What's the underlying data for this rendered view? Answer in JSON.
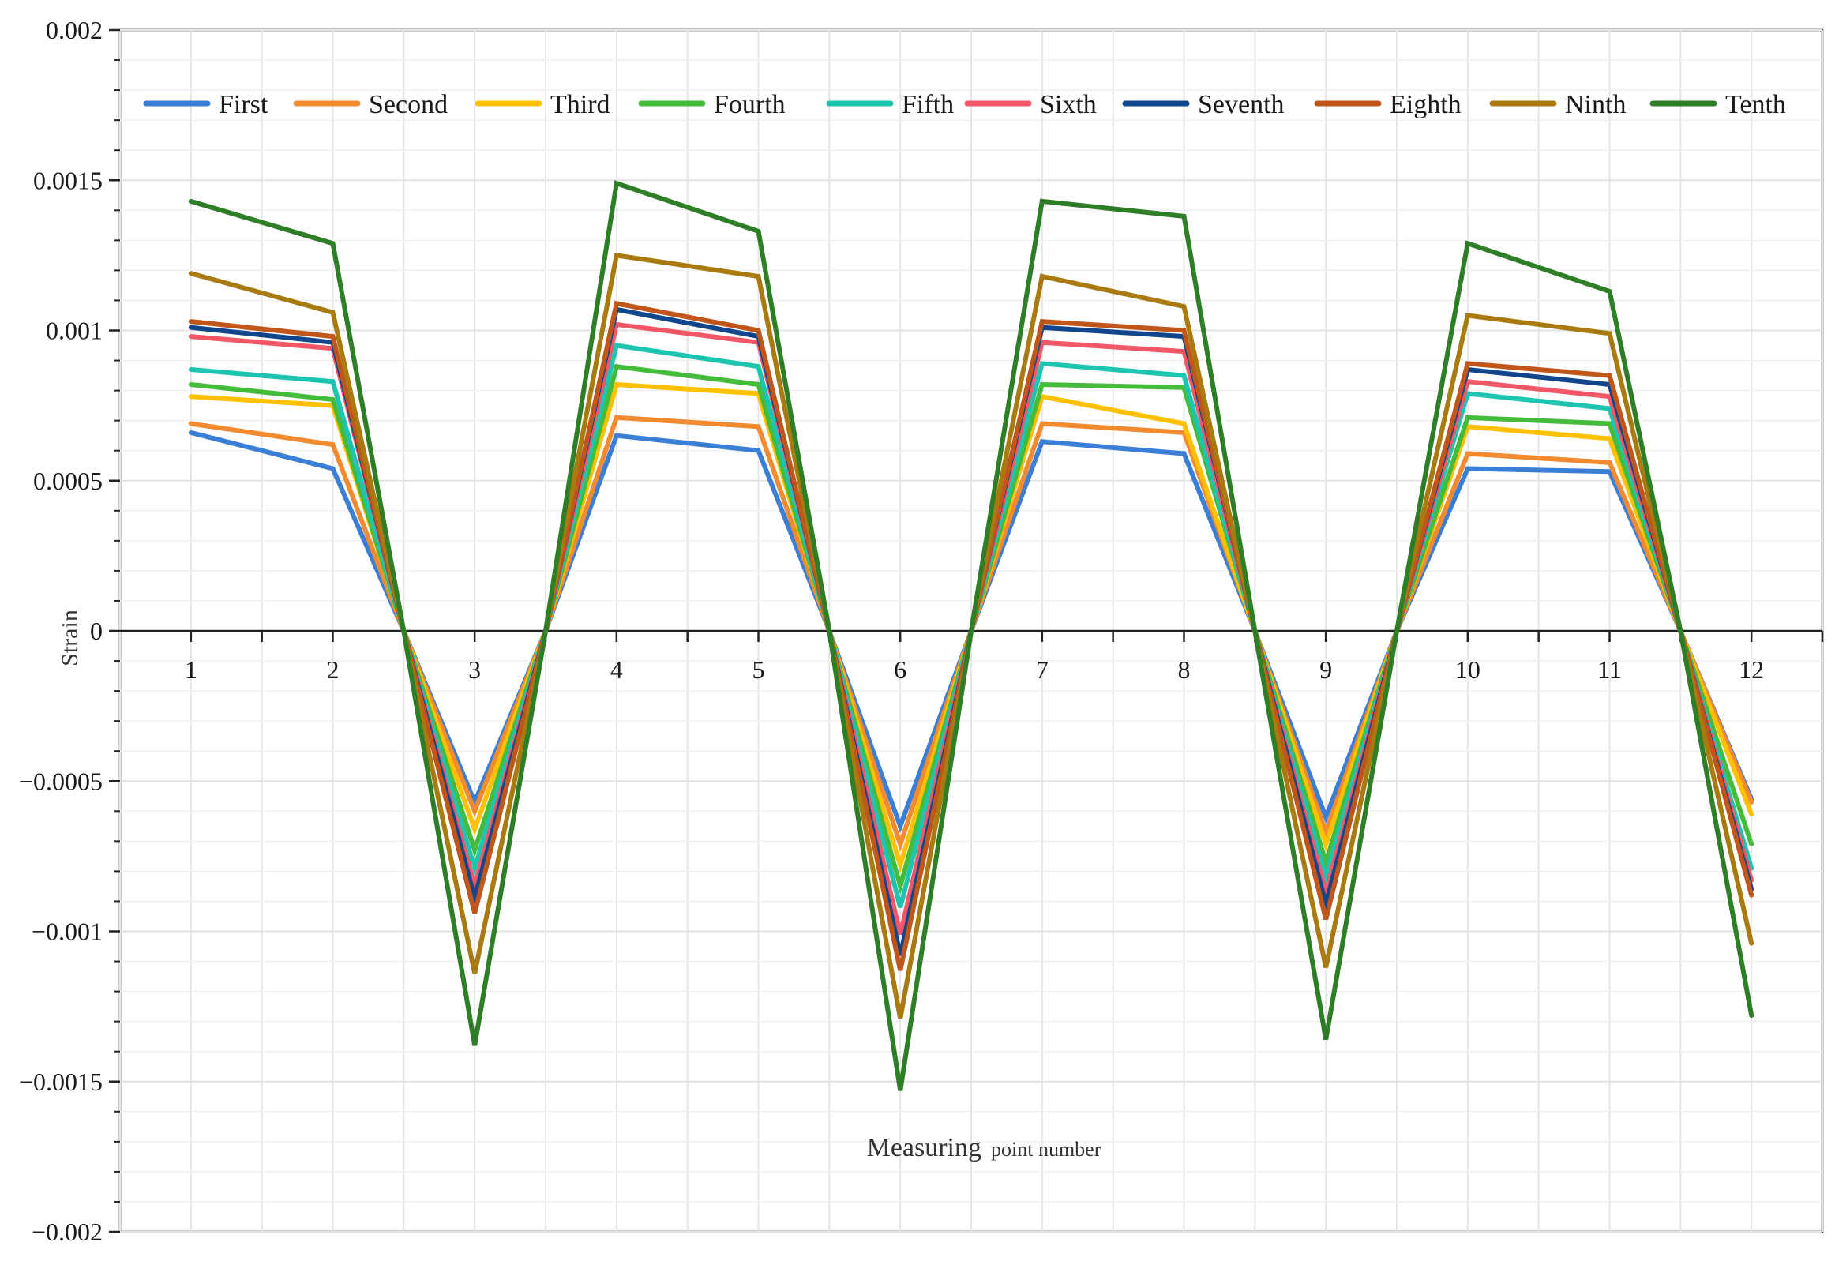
{
  "chart_data": {
    "type": "line",
    "title": "",
    "ylabel": "Strain",
    "xlabel_main": "Measuring",
    "xlabel_sub": "point number",
    "ylim": [
      -0.002,
      0.002
    ],
    "yticks": [
      0.002,
      0.0015,
      0.001,
      0.0005,
      0,
      -0.0005,
      -0.001,
      -0.0015,
      -0.002
    ],
    "ytick_labels": [
      "0.002",
      "0.0015",
      "0.001",
      "0.0005",
      "0",
      "−0.0005",
      "−0.001",
      "−0.0015",
      "−0.002"
    ],
    "xlim": [
      0.5,
      12.5
    ],
    "categories": [
      "1",
      "2",
      "3",
      "4",
      "5",
      "6",
      "7",
      "8",
      "9",
      "10",
      "11",
      "12"
    ],
    "zero_crossings": [
      2.5,
      3.5,
      5.5,
      6.5,
      8.5,
      9.5,
      11.5
    ],
    "legend_position": "top",
    "series": [
      {
        "name": "First",
        "color": "#3a7fd5",
        "values": [
          0.00066,
          0.00054,
          -0.00057,
          0.00065,
          0.0006,
          -0.00065,
          0.00063,
          0.00059,
          -0.00062,
          0.00054,
          0.00053,
          -0.00056
        ]
      },
      {
        "name": "Second",
        "color": "#f28a30",
        "values": [
          0.00069,
          0.00062,
          -0.0006,
          0.00071,
          0.00068,
          -0.00071,
          0.00069,
          0.00066,
          -0.00067,
          0.00059,
          0.00056,
          -0.00057
        ]
      },
      {
        "name": "Third",
        "color": "#ffc000",
        "values": [
          0.00078,
          0.00075,
          -0.00066,
          0.00082,
          0.00079,
          -0.00078,
          0.00078,
          0.00069,
          -0.00071,
          0.00068,
          0.00064,
          -0.00061
        ]
      },
      {
        "name": "Fourth",
        "color": "#44bb3b",
        "values": [
          0.00082,
          0.00077,
          -0.00073,
          0.00088,
          0.00082,
          -0.00085,
          0.00082,
          0.00081,
          -0.00077,
          0.00071,
          0.00069,
          -0.00071
        ]
      },
      {
        "name": "Fifth",
        "color": "#1dc5b0",
        "values": [
          0.00087,
          0.00083,
          -0.00079,
          0.00095,
          0.00088,
          -0.00092,
          0.00089,
          0.00085,
          -0.00082,
          0.00079,
          0.00074,
          -0.00079
        ]
      },
      {
        "name": "Sixth",
        "color": "#f25767",
        "values": [
          0.00098,
          0.00094,
          -0.00085,
          0.00102,
          0.00096,
          -0.00101,
          0.00096,
          0.00093,
          -0.00087,
          0.00083,
          0.00078,
          -0.00083
        ]
      },
      {
        "name": "Seventh",
        "color": "#12468c",
        "values": [
          0.00101,
          0.00096,
          -0.00089,
          0.00107,
          0.00098,
          -0.00108,
          0.00101,
          0.00098,
          -0.00091,
          0.00087,
          0.00082,
          -0.00086
        ]
      },
      {
        "name": "Eighth",
        "color": "#c0561a",
        "values": [
          0.00103,
          0.00098,
          -0.00094,
          0.00109,
          0.001,
          -0.00113,
          0.00103,
          0.001,
          -0.00096,
          0.00089,
          0.00085,
          -0.00088
        ]
      },
      {
        "name": "Ninth",
        "color": "#a87a0f",
        "values": [
          0.00119,
          0.00106,
          -0.00114,
          0.00125,
          0.00118,
          -0.00129,
          0.00118,
          0.00108,
          -0.00112,
          0.00105,
          0.00099,
          -0.00104
        ]
      },
      {
        "name": "Tenth",
        "color": "#2e7d27",
        "values": [
          0.00143,
          0.00129,
          -0.00138,
          0.00149,
          0.00133,
          -0.00153,
          0.00143,
          0.00138,
          -0.00136,
          0.00129,
          0.00113,
          -0.00128
        ]
      }
    ]
  }
}
